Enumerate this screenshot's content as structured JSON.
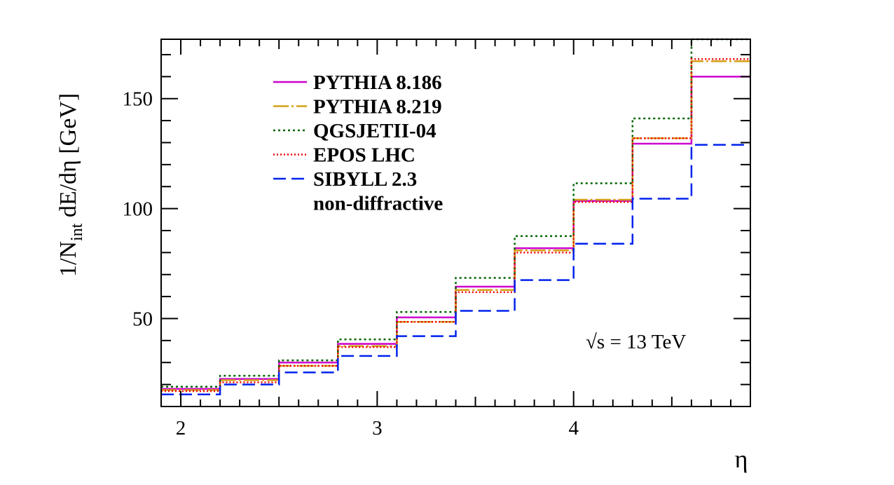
{
  "chart_data": {
    "type": "line",
    "xlabel": "η",
    "ylabel_main": "1/N",
    "ylabel_sub": "int",
    "ylabel_rest": " dE/dη [GeV]",
    "xlim": [
      1.9,
      4.9
    ],
    "ylim": [
      10,
      177
    ],
    "x_ticks": [
      2,
      3,
      4
    ],
    "y_ticks": [
      50,
      100,
      150
    ],
    "annotation": "√s = 13 TeV",
    "legend_placement": "top-left",
    "grid": false,
    "bin_edges": [
      1.9,
      2.2,
      2.5,
      2.8,
      3.1,
      3.4,
      3.7,
      4.0,
      4.3,
      4.6,
      4.9
    ],
    "series": [
      {
        "name": "PYTHIA 8.186",
        "color": "#cc00cc",
        "dash": "solid",
        "values": [
          18,
          22.5,
          30,
          38.5,
          50.5,
          64.5,
          82,
          103.5,
          129.5,
          160
        ]
      },
      {
        "name": "PYTHIA 8.219",
        "color": "#d4a017",
        "dash": "longdash",
        "values": [
          17.5,
          22,
          28.5,
          37.5,
          48.5,
          63,
          81,
          104,
          132,
          167
        ]
      },
      {
        "name": "QGSJETII-04",
        "color": "#006400",
        "dash": "dotted",
        "values": [
          19,
          24,
          31,
          40.5,
          53,
          68.5,
          87.5,
          111.5,
          141,
          177
        ]
      },
      {
        "name": "EPOS LHC",
        "color": "#ee0000",
        "dash": "finedot",
        "values": [
          17,
          21,
          28.5,
          37,
          48.5,
          62,
          80,
          103,
          132,
          168
        ]
      },
      {
        "name": "SIBYLL 2.3",
        "color": "#0022ee",
        "dash": "dash",
        "values": [
          15.5,
          20,
          25.5,
          33,
          42,
          53.5,
          67.5,
          84,
          104.5,
          129
        ]
      }
    ],
    "extra_legend_text": "non-diffractive"
  }
}
